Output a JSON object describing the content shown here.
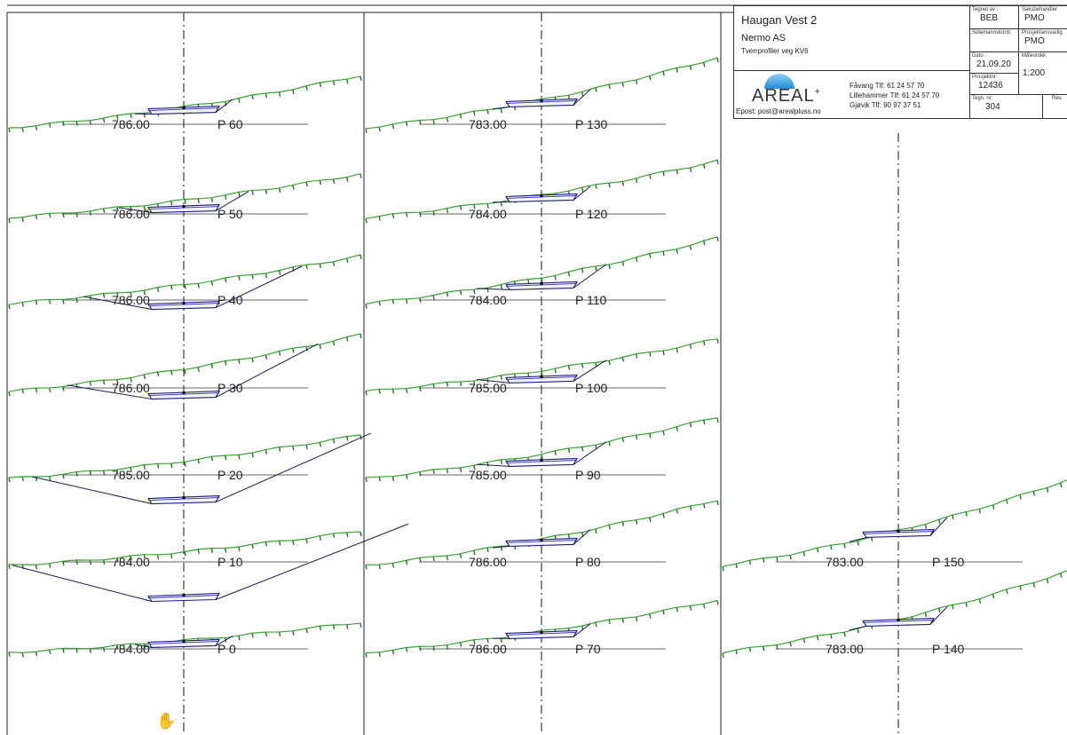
{
  "title_block": {
    "project": "Haugan Vest 2",
    "client": "Nermo AS",
    "description": "Tverrprofiler veg KV6",
    "drawn_by_label": "Tegnet av :",
    "drawn_by": "BEB",
    "case_handler_label": "Saksbehandler",
    "case_handler": "PMO",
    "side_check_label": "Sidemannskontr.",
    "project_manager_label": "Prosjektansvarlig",
    "project_manager": "PMO",
    "date_label": "Dato",
    "date": "21.09.20",
    "scale_label": "Målestokk",
    "scale": "1:200",
    "project_no_label": "Prosjektnr:",
    "project_no": "12436",
    "drawing_no_label": "Tegn. nr:",
    "drawing_no": "304",
    "rev_label": "Rev.",
    "company": "AREAL",
    "company_plus": "+",
    "email": "Epost: post@arealpluss.no",
    "offices": [
      "Fåvang Tlf: 61 24 57 70",
      "Lillehammer Tlf: 61 24 57 70",
      "Gjøvik Tlf: 90 97 37 51"
    ]
  },
  "profiles": [
    {
      "col": 0,
      "row": 0,
      "elevation": "786.00",
      "label": "P 60"
    },
    {
      "col": 0,
      "row": 1,
      "elevation": "786.00",
      "label": "P 50"
    },
    {
      "col": 0,
      "row": 2,
      "elevation": "786.00",
      "label": "P 40"
    },
    {
      "col": 0,
      "row": 3,
      "elevation": "786.00",
      "label": "P 30"
    },
    {
      "col": 0,
      "row": 4,
      "elevation": "785.00",
      "label": "P 20"
    },
    {
      "col": 0,
      "row": 5,
      "elevation": "784.00",
      "label": "P 10"
    },
    {
      "col": 0,
      "row": 6,
      "elevation": "784.00",
      "label": "P 0"
    },
    {
      "col": 1,
      "row": 0,
      "elevation": "783.00",
      "label": "P 130"
    },
    {
      "col": 1,
      "row": 1,
      "elevation": "784.00",
      "label": "P 120"
    },
    {
      "col": 1,
      "row": 2,
      "elevation": "784.00",
      "label": "P 110"
    },
    {
      "col": 1,
      "row": 3,
      "elevation": "785.00",
      "label": "P 100"
    },
    {
      "col": 1,
      "row": 4,
      "elevation": "785.00",
      "label": "P 90"
    },
    {
      "col": 1,
      "row": 5,
      "elevation": "786.00",
      "label": "P 80"
    },
    {
      "col": 1,
      "row": 6,
      "elevation": "786.00",
      "label": "P 70"
    },
    {
      "col": 2,
      "row": 5,
      "elevation": "783.00",
      "label": "P 150"
    },
    {
      "col": 2,
      "row": 6,
      "elevation": "783.00",
      "label": "P 140"
    }
  ],
  "hand_icon": "hand-pan-icon"
}
